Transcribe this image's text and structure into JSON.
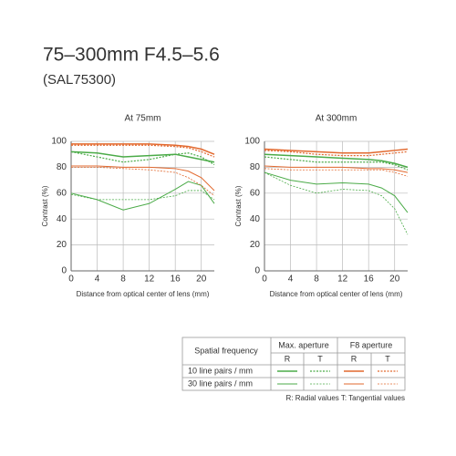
{
  "header": {
    "title": "75–300mm F4.5–5.6",
    "subtitle": "(SAL75300)"
  },
  "chart_data": [
    {
      "type": "line",
      "title": "At 75mm",
      "x_label": "Distance from optical center of lens (mm)",
      "y_label": "Contrast (%)",
      "x": [
        0,
        4,
        8,
        12,
        16,
        18,
        20,
        22
      ],
      "xlim": [
        0,
        22
      ],
      "xticks": [
        0,
        4,
        8,
        12,
        16,
        20
      ],
      "ylim": [
        0,
        100
      ],
      "yticks": [
        0,
        20,
        40,
        60,
        80,
        100
      ],
      "grid": true,
      "series": [
        {
          "color": "#4bab48",
          "dashed": false,
          "width": 1.5,
          "values": [
            92,
            91,
            88,
            89,
            90,
            88,
            86,
            84
          ]
        },
        {
          "color": "#4bab48",
          "dashed": true,
          "width": 1.2,
          "values": [
            92,
            88,
            84,
            86,
            90,
            91,
            88,
            82
          ]
        },
        {
          "color": "#4bab48",
          "dashed": false,
          "width": 1,
          "values": [
            60,
            55,
            47,
            52,
            63,
            69,
            66,
            52
          ]
        },
        {
          "color": "#4bab48",
          "dashed": true,
          "width": 0.8,
          "values": [
            59,
            55,
            55,
            55,
            58,
            62,
            62,
            55
          ]
        },
        {
          "color": "#e2692f",
          "dashed": false,
          "width": 1.5,
          "values": [
            98,
            98,
            98,
            98,
            97,
            96,
            94,
            90
          ]
        },
        {
          "color": "#e2692f",
          "dashed": true,
          "width": 1.2,
          "values": [
            97,
            97,
            97,
            97,
            96,
            95,
            92,
            88
          ]
        },
        {
          "color": "#e2692f",
          "dashed": false,
          "width": 1,
          "values": [
            81,
            81,
            80,
            80,
            79,
            77,
            72,
            62
          ]
        },
        {
          "color": "#e2692f",
          "dashed": true,
          "width": 0.8,
          "values": [
            80,
            80,
            79,
            78,
            76,
            72,
            66,
            58
          ]
        }
      ]
    },
    {
      "type": "line",
      "title": "At 300mm",
      "x_label": "Distance from optical center of lens (mm)",
      "y_label": "Contrast (%)",
      "x": [
        0,
        4,
        8,
        12,
        16,
        18,
        20,
        22
      ],
      "xlim": [
        0,
        22
      ],
      "xticks": [
        0,
        4,
        8,
        12,
        16,
        20
      ],
      "ylim": [
        0,
        100
      ],
      "yticks": [
        0,
        20,
        40,
        60,
        80,
        100
      ],
      "grid": true,
      "series": [
        {
          "color": "#4bab48",
          "dashed": false,
          "width": 1.5,
          "values": [
            90,
            89,
            88,
            87,
            86,
            85,
            83,
            80
          ]
        },
        {
          "color": "#4bab48",
          "dashed": true,
          "width": 1.2,
          "values": [
            88,
            86,
            84,
            84,
            84,
            84,
            82,
            78
          ]
        },
        {
          "color": "#4bab48",
          "dashed": false,
          "width": 1,
          "values": [
            76,
            70,
            67,
            68,
            67,
            64,
            58,
            45
          ]
        },
        {
          "color": "#4bab48",
          "dashed": true,
          "width": 0.8,
          "values": [
            76,
            66,
            60,
            63,
            62,
            58,
            48,
            28
          ]
        },
        {
          "color": "#e2692f",
          "dashed": false,
          "width": 1.5,
          "values": [
            94,
            93,
            92,
            91,
            91,
            92,
            93,
            94
          ]
        },
        {
          "color": "#e2692f",
          "dashed": true,
          "width": 1.2,
          "values": [
            93,
            92,
            90,
            89,
            89,
            90,
            91,
            92
          ]
        },
        {
          "color": "#e2692f",
          "dashed": false,
          "width": 1,
          "values": [
            81,
            80,
            80,
            80,
            79,
            79,
            78,
            76
          ]
        },
        {
          "color": "#e2692f",
          "dashed": true,
          "width": 0.8,
          "values": [
            79,
            78,
            78,
            78,
            78,
            78,
            76,
            73
          ]
        }
      ]
    }
  ],
  "legend_table": {
    "corner_header": "Spatial frequency",
    "groups": [
      "Max. aperture",
      "F8 aperture"
    ],
    "subheaders": [
      "R",
      "T",
      "R",
      "T"
    ],
    "rows": [
      "10 line pairs / mm",
      "30 line pairs / mm"
    ],
    "note": "R: Radial values  T: Tangential values"
  }
}
